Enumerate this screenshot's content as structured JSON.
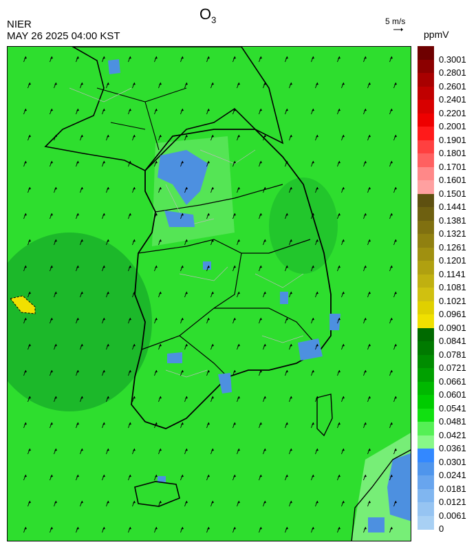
{
  "header": {
    "title": "O",
    "title_sub": "3",
    "org": "NIER",
    "timestamp": "MAY 26 2025 04:00 KST",
    "ref_vector": "5 m/s",
    "unit": "ppmV"
  },
  "colors": {
    "background_green": "#33dd33",
    "dark_green": "#1cb82a",
    "light_green": "#66ee66",
    "blue": "#4d90e0",
    "yellow": "#f0e000",
    "boundary": "#000000",
    "district_lines": "#bbbbbb"
  },
  "legend": [
    {
      "label": "0.3001",
      "color": "#6e0000"
    },
    {
      "label": "0.2801",
      "color": "#8c0000"
    },
    {
      "label": "0.2601",
      "color": "#a80000"
    },
    {
      "label": "0.2401",
      "color": "#c00000"
    },
    {
      "label": "0.2201",
      "color": "#d80000"
    },
    {
      "label": "0.2001",
      "color": "#ee0000"
    },
    {
      "label": "0.1901",
      "color": "#ff1a1a"
    },
    {
      "label": "0.1801",
      "color": "#ff4040"
    },
    {
      "label": "0.1701",
      "color": "#ff6060"
    },
    {
      "label": "0.1601",
      "color": "#ff8888"
    },
    {
      "label": "0.1501",
      "color": "#ffa0a0"
    },
    {
      "label": "0.1441",
      "color": "#5e5010"
    },
    {
      "label": "0.1381",
      "color": "#6e6010"
    },
    {
      "label": "0.1321",
      "color": "#807010"
    },
    {
      "label": "0.1261",
      "color": "#908010"
    },
    {
      "label": "0.1201",
      "color": "#a09010"
    },
    {
      "label": "0.1141",
      "color": "#b0a010"
    },
    {
      "label": "0.1081",
      "color": "#c0b010"
    },
    {
      "label": "0.1021",
      "color": "#d0c010"
    },
    {
      "label": "0.0961",
      "color": "#e0d000"
    },
    {
      "label": "0.0901",
      "color": "#f0e000"
    },
    {
      "label": "0.0841",
      "color": "#006a00"
    },
    {
      "label": "0.0781",
      "color": "#007a00"
    },
    {
      "label": "0.0721",
      "color": "#008c00"
    },
    {
      "label": "0.0661",
      "color": "#00a000"
    },
    {
      "label": "0.0601",
      "color": "#00b800"
    },
    {
      "label": "0.0541",
      "color": "#00cc00"
    },
    {
      "label": "0.0481",
      "color": "#11e011"
    },
    {
      "label": "0.0421",
      "color": "#55f055"
    },
    {
      "label": "0.0361",
      "color": "#88f888"
    },
    {
      "label": "0.0301",
      "color": "#3388ff"
    },
    {
      "label": "0.0241",
      "color": "#4f95ec"
    },
    {
      "label": "0.0181",
      "color": "#68a5ee"
    },
    {
      "label": "0.0121",
      "color": "#80b6f0"
    },
    {
      "label": "0.0061",
      "color": "#96c4f2"
    },
    {
      "label": "0",
      "color": "#a8d0f4"
    }
  ],
  "wind": {
    "direction": "southerly / southeasterly",
    "dx": 3,
    "dy": -8
  }
}
